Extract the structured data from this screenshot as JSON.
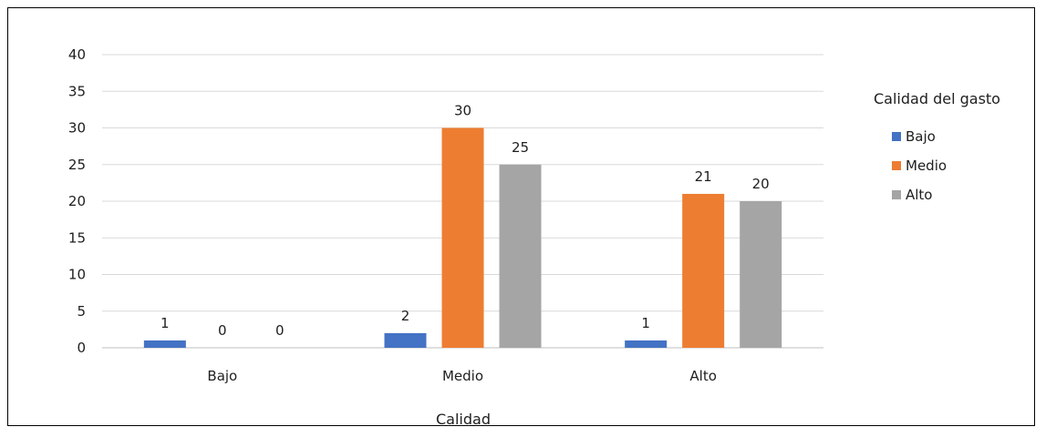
{
  "chart_data": {
    "type": "bar",
    "title": "",
    "xlabel": "Calidad",
    "ylabel": "",
    "ylim": [
      0,
      40
    ],
    "yticks": [
      0,
      5,
      10,
      15,
      20,
      25,
      30,
      35,
      40
    ],
    "grid": true,
    "legend_position": "right",
    "legend_title": "Calidad del gasto",
    "categories": [
      "Bajo",
      "Medio",
      "Alto"
    ],
    "series": [
      {
        "name": "Bajo",
        "color": "#4472C4",
        "values": [
          1,
          2,
          1
        ]
      },
      {
        "name": "Medio",
        "color": "#ED7D31",
        "values": [
          0,
          30,
          21
        ]
      },
      {
        "name": "Alto",
        "color": "#A5A5A5",
        "values": [
          0,
          25,
          20
        ]
      }
    ]
  }
}
